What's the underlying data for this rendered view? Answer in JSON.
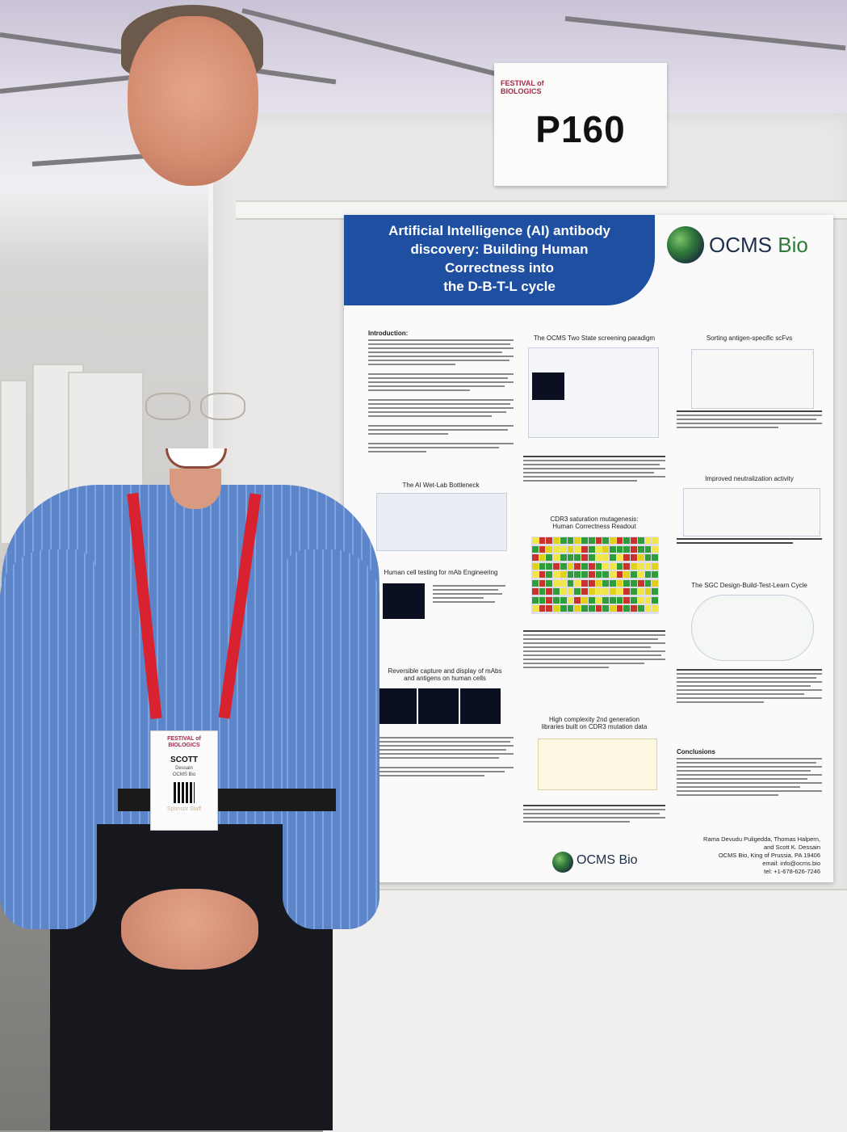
{
  "scene": {
    "description_free": true
  },
  "sign": {
    "festival_line1": "FESTIVAL of",
    "festival_line2": "BIOLOGICS",
    "number": "P160"
  },
  "poster": {
    "title_lines": [
      "Artificial Intelligence (AI) antibody",
      "discovery: Building Human",
      "Correctness into",
      "the D-B-T-L cycle"
    ],
    "logo_text": "OCMS",
    "logo_text_b": "Bio",
    "sections": {
      "introduction": "Introduction:",
      "two_state": "The OCMS Two State screening paradigm",
      "sorting": "Sorting antigen-specific scFvs",
      "wet_lab": "The AI Wet-Lab Bottleneck",
      "cdr3_line1": "CDR3 saturation mutagenesis:",
      "cdr3_line2": "Human Correctness Readout",
      "neutralization": "Improved neutralization activity",
      "human_cell": "Human cell testing for mAb Engineering",
      "dbtl_cycle": "The SGC Design-Build-Test-Learn Cycle",
      "reversible_line1": "Reversible capture and display of mAbs",
      "reversible_line2": "and antigens on human cells",
      "high_complexity_line1": "High complexity 2nd generation",
      "high_complexity_line2": "libraries built on CDR3 mutation data",
      "conclusions": "Conclusions"
    },
    "bottom_logo": "OCMS Bio",
    "authors": [
      "Rama Devudu Puligedda, Thomas Halpern,",
      "and Scott K. Dessain",
      "OCMS Bio, King of Prussia, PA 19406",
      "email: info@ocms.bio",
      "tel: +1-678-626-7246"
    ]
  },
  "badge": {
    "festival_line1": "FESTIVAL of",
    "festival_line2": "BIOLOGICS",
    "name": "SCOTT",
    "surname": "Dessain",
    "company": "OCMS Bio",
    "role": "Sponsor Staff"
  },
  "colors": {
    "poster_blue": "#1f4fa0",
    "logo_green": "#2f7a3a",
    "lanyard_red": "#d8222f",
    "shirt_blue": "#5d85c9"
  }
}
